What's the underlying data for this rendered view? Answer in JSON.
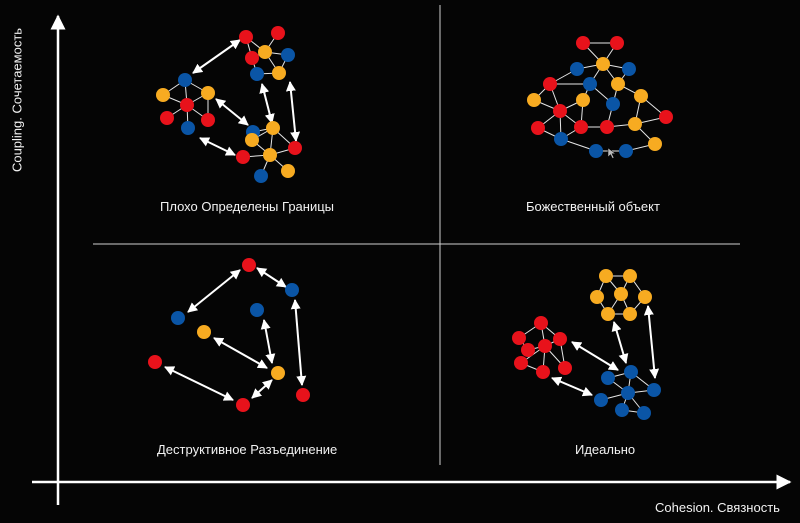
{
  "axes": {
    "y_label": "Coupling. Сочетаемость",
    "x_label": "Cohesion. Связность"
  },
  "quadrants": [
    {
      "id": "top-left",
      "label": "Плохо Определены Границы"
    },
    {
      "id": "top-right",
      "label": "Божественный объект"
    },
    {
      "id": "bottom-left",
      "label": "Деструктивное Разъединение"
    },
    {
      "id": "bottom-right",
      "label": "Идеально"
    }
  ],
  "colors": {
    "red": "#e8121b",
    "orange": "#f7ab21",
    "blue": "#0a55a6",
    "line": "#ffffff"
  }
}
